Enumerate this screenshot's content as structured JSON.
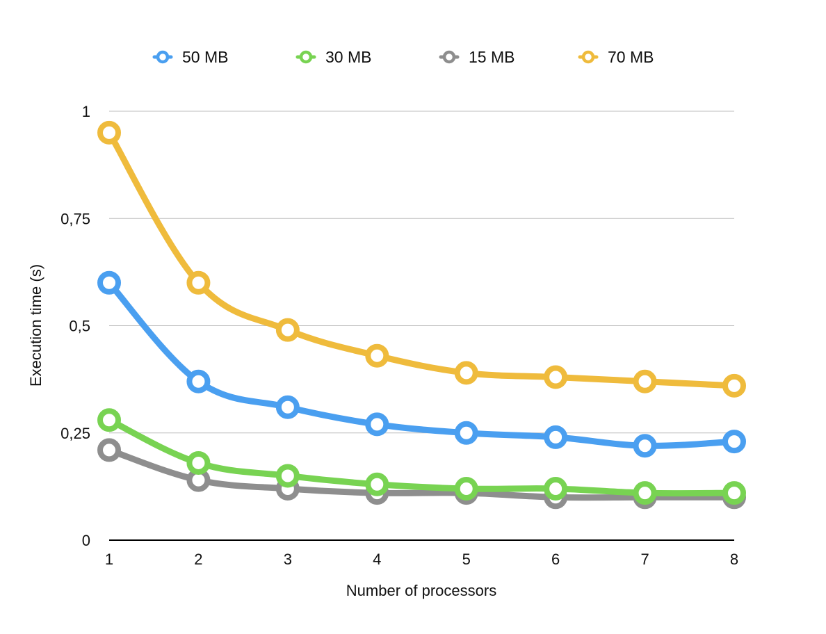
{
  "chart_data": {
    "type": "line",
    "x": [
      1,
      2,
      3,
      4,
      5,
      6,
      7,
      8
    ],
    "xlabel": "Number of processors",
    "ylabel": "Execution time (s)",
    "ylim": [
      0,
      1
    ],
    "yticks": [
      0,
      0.25,
      0.5,
      0.75,
      1
    ],
    "ytick_labels": [
      "0",
      "0,25",
      "0,5",
      "0,75",
      "1"
    ],
    "xtick_labels": [
      "1",
      "2",
      "3",
      "4",
      "5",
      "6",
      "7",
      "8"
    ],
    "grid": true,
    "legend_position": "top",
    "series": [
      {
        "name": "50 MB",
        "color": "#4a9ff0",
        "values": [
          0.6,
          0.37,
          0.31,
          0.27,
          0.25,
          0.24,
          0.22,
          0.23
        ]
      },
      {
        "name": "30 MB",
        "color": "#78d352",
        "values": [
          0.28,
          0.18,
          0.15,
          0.13,
          0.12,
          0.12,
          0.11,
          0.11
        ]
      },
      {
        "name": "15 MB",
        "color": "#8e8e8e",
        "values": [
          0.21,
          0.14,
          0.12,
          0.11,
          0.11,
          0.1,
          0.1,
          0.1
        ]
      },
      {
        "name": "70 MB",
        "color": "#efbb3c",
        "values": [
          0.95,
          0.6,
          0.49,
          0.43,
          0.39,
          0.38,
          0.37,
          0.36
        ]
      }
    ]
  }
}
